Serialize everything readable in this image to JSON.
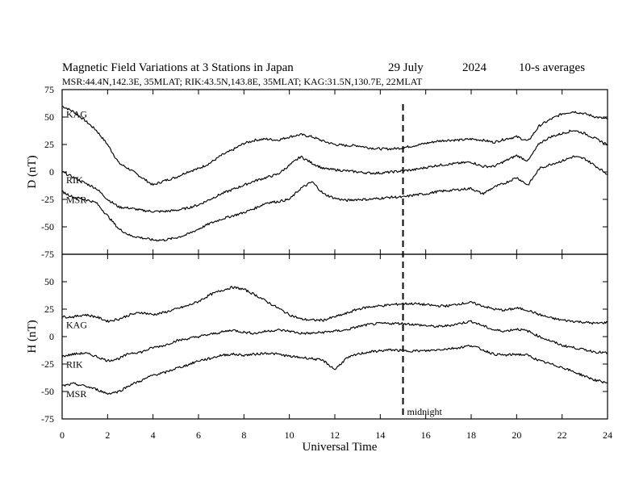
{
  "chart_data": {
    "type": "line",
    "title": {
      "left": "Magnetic Field Variations at 3 Stations in Japan",
      "date": "29 July",
      "year": "2024",
      "note": "10-s averages"
    },
    "subtitle": "MSR:44.4N,142.3E, 35MLAT;  RIK:43.5N,143.8E, 35MLAT;  KAG:31.5N,130.7E, 22MLAT",
    "xlabel": "Universal Time",
    "xlim": [
      0,
      24
    ],
    "xticks": [
      0,
      2,
      4,
      6,
      8,
      10,
      12,
      14,
      16,
      18,
      20,
      22,
      24
    ],
    "grid": false,
    "marker": {
      "x": 15,
      "label": "midnight"
    },
    "panels": [
      {
        "name": "D",
        "ylabel": "D (nT)",
        "ylim": [
          -75,
          75
        ],
        "yticks": [
          -75,
          -50,
          -25,
          0,
          25,
          50,
          75
        ],
        "series": [
          {
            "name": "KAG",
            "x": [
              0,
              0.5,
              1,
              1.5,
              2,
              2.5,
              3,
              3.5,
              4,
              4.5,
              5,
              5.5,
              6,
              6.5,
              7,
              7.5,
              8,
              8.5,
              9,
              9.5,
              10,
              10.5,
              11,
              11.5,
              12,
              12.5,
              13,
              13.5,
              14,
              14.5,
              15,
              15.5,
              16,
              16.5,
              17,
              17.5,
              18,
              18.5,
              19,
              19.5,
              20,
              20.5,
              21,
              21.5,
              22,
              22.5,
              23,
              23.5,
              24
            ],
            "y": [
              60,
              55,
              47,
              38,
              25,
              8,
              2,
              -5,
              -12,
              -8,
              -5,
              0,
              3,
              8,
              15,
              20,
              26,
              29,
              30,
              29,
              32,
              34,
              32,
              28,
              25,
              24,
              24,
              22,
              21,
              21,
              22,
              24,
              26,
              28,
              29,
              29,
              30,
              29,
              27,
              30,
              32,
              28,
              42,
              48,
              53,
              55,
              53,
              50,
              48
            ]
          },
          {
            "name": "RIK",
            "x": [
              0,
              0.5,
              1,
              1.5,
              2,
              2.5,
              3,
              3.5,
              4,
              4.5,
              5,
              5.5,
              6,
              6.5,
              7,
              7.5,
              8,
              8.5,
              9,
              9.5,
              10,
              10.5,
              11,
              11.5,
              12,
              12.5,
              13,
              13.5,
              14,
              14.5,
              15,
              15.5,
              16,
              16.5,
              17,
              17.5,
              18,
              18.5,
              19,
              19.5,
              20,
              20.5,
              21,
              21.5,
              22,
              22.5,
              23,
              23.5,
              24
            ],
            "y": [
              0,
              -5,
              -10,
              -15,
              -25,
              -32,
              -33,
              -35,
              -36,
              -36,
              -35,
              -33,
              -30,
              -25,
              -20,
              -16,
              -12,
              -8,
              -5,
              -2,
              6,
              14,
              8,
              3,
              2,
              1,
              0,
              -1,
              -1,
              0,
              1,
              2,
              4,
              6,
              7,
              8,
              9,
              5,
              5,
              10,
              15,
              10,
              26,
              32,
              35,
              38,
              35,
              30,
              25
            ]
          },
          {
            "name": "MSR",
            "x": [
              0,
              0.5,
              1,
              1.5,
              2,
              2.5,
              3,
              3.5,
              4,
              4.5,
              5,
              5.5,
              6,
              6.5,
              7,
              7.5,
              8,
              8.5,
              9,
              9.5,
              10,
              10.5,
              11,
              11.5,
              12,
              12.5,
              13,
              13.5,
              14,
              14.5,
              15,
              15.5,
              16,
              16.5,
              17,
              17.5,
              18,
              18.5,
              19,
              19.5,
              20,
              20.5,
              21,
              21.5,
              22,
              22.5,
              23,
              23.5,
              24
            ],
            "y": [
              -18,
              -23,
              -25,
              -28,
              -40,
              -52,
              -58,
              -60,
              -62,
              -62,
              -60,
              -57,
              -52,
              -47,
              -43,
              -40,
              -37,
              -33,
              -28,
              -27,
              -25,
              -15,
              -9,
              -20,
              -24,
              -26,
              -25,
              -25,
              -24,
              -23,
              -23,
              -21,
              -20,
              -18,
              -17,
              -16,
              -15,
              -20,
              -14,
              -10,
              -5,
              -12,
              3,
              7,
              10,
              14,
              12,
              5,
              -2
            ]
          }
        ]
      },
      {
        "name": "H",
        "ylabel": "H (nT)",
        "ylim": [
          -75,
          75
        ],
        "yticks": [
          -75,
          -50,
          -25,
          0,
          25,
          50
        ],
        "series": [
          {
            "name": "KAG",
            "x": [
              0,
              0.5,
              1,
              1.5,
              2,
              2.5,
              3,
              3.5,
              4,
              4.5,
              5,
              5.5,
              6,
              6.5,
              7,
              7.5,
              8,
              8.5,
              9,
              9.5,
              10,
              10.5,
              11,
              11.5,
              12,
              12.5,
              13,
              13.5,
              14,
              14.5,
              15,
              15.5,
              16,
              16.5,
              17,
              17.5,
              18,
              18.5,
              19,
              19.5,
              20,
              20.5,
              21,
              21.5,
              22,
              22.5,
              23,
              23.5,
              24
            ],
            "y": [
              18,
              18,
              20,
              18,
              14,
              16,
              20,
              22,
              20,
              22,
              25,
              28,
              32,
              38,
              42,
              45,
              43,
              38,
              32,
              26,
              20,
              16,
              15,
              15,
              18,
              21,
              25,
              27,
              28,
              29,
              30,
              30,
              29,
              28,
              28,
              30,
              31,
              28,
              25,
              24,
              26,
              24,
              20,
              17,
              15,
              14,
              13,
              12,
              13
            ]
          },
          {
            "name": "RIK",
            "x": [
              0,
              0.5,
              1,
              1.5,
              2,
              2.5,
              3,
              3.5,
              4,
              4.5,
              5,
              5.5,
              6,
              6.5,
              7,
              7.5,
              8,
              8.5,
              9,
              9.5,
              10,
              10.5,
              11,
              11.5,
              12,
              12.5,
              13,
              13.5,
              14,
              14.5,
              15,
              15.5,
              16,
              16.5,
              17,
              17.5,
              18,
              18.5,
              19,
              19.5,
              20,
              20.5,
              21,
              21.5,
              22,
              22.5,
              23,
              23.5,
              24
            ],
            "y": [
              -18,
              -16,
              -15,
              -18,
              -22,
              -20,
              -15,
              -14,
              -10,
              -8,
              -4,
              -2,
              0,
              2,
              4,
              6,
              4,
              3,
              5,
              6,
              5,
              3,
              3,
              4,
              5,
              6,
              9,
              11,
              12,
              12,
              12,
              11,
              10,
              9,
              10,
              12,
              14,
              10,
              6,
              5,
              7,
              5,
              0,
              -4,
              -8,
              -10,
              -12,
              -14,
              -15
            ]
          },
          {
            "name": "MSR",
            "x": [
              0,
              0.5,
              1,
              1.5,
              2,
              2.5,
              3,
              3.5,
              4,
              4.5,
              5,
              5.5,
              6,
              6.5,
              7,
              7.5,
              8,
              8.5,
              9,
              9.5,
              10,
              10.5,
              11,
              11.5,
              12,
              12.5,
              13,
              13.5,
              14,
              14.5,
              15,
              15.5,
              16,
              16.5,
              17,
              17.5,
              18,
              18.5,
              19,
              19.5,
              20,
              20.5,
              21,
              21.5,
              22,
              22.5,
              23,
              23.5,
              24
            ],
            "y": [
              -45,
              -43,
              -45,
              -48,
              -52,
              -50,
              -44,
              -40,
              -35,
              -33,
              -29,
              -26,
              -22,
              -20,
              -17,
              -16,
              -17,
              -16,
              -15,
              -16,
              -18,
              -19,
              -20,
              -22,
              -30,
              -20,
              -16,
              -14,
              -13,
              -12,
              -13,
              -13,
              -13,
              -12,
              -11,
              -10,
              -8,
              -12,
              -16,
              -17,
              -16,
              -17,
              -22,
              -25,
              -28,
              -32,
              -36,
              -40,
              -42
            ]
          }
        ]
      }
    ]
  }
}
